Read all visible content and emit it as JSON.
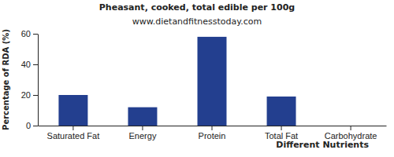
{
  "chart_data": {
    "type": "bar",
    "title": "Pheasant, cooked, total edible per 100g",
    "subtitle": "www.dietandfitnesstoday.com",
    "x_label": "Different Nutrients",
    "y_label": "Percentage of RDA (%)",
    "categories": [
      "Saturated Fat",
      "Energy",
      "Protein",
      "Total Fat",
      "Carbohydrate"
    ],
    "values": [
      20,
      12,
      58,
      19,
      0
    ],
    "color": "#233f8f",
    "ylim": [
      0,
      60
    ],
    "yticks": [
      0,
      20,
      40,
      60
    ],
    "grid": false
  }
}
